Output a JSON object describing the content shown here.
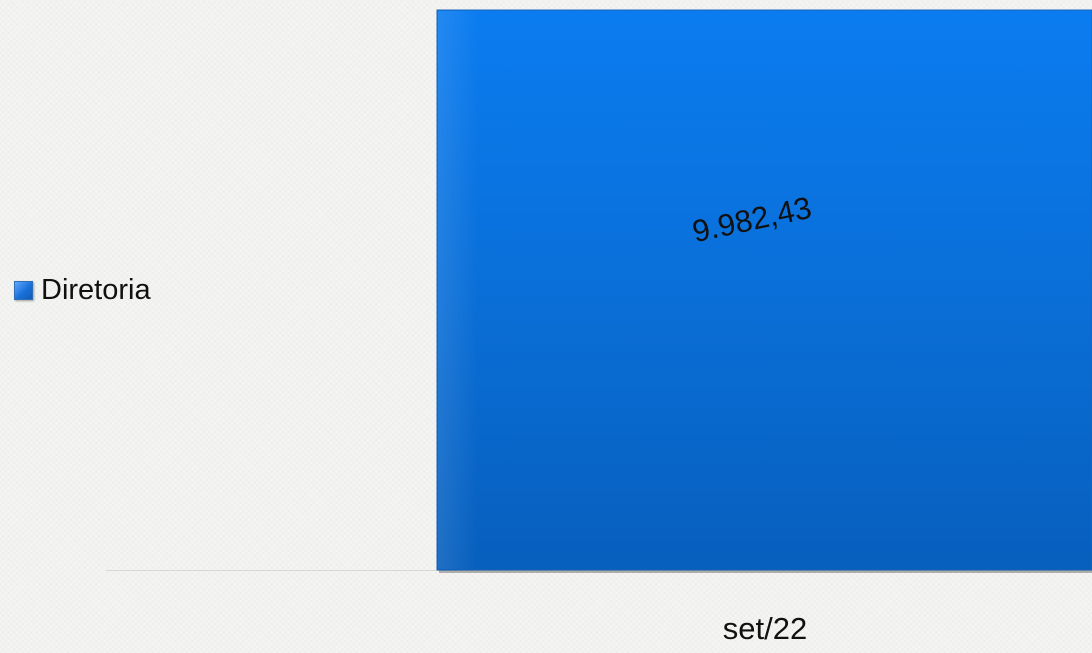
{
  "chart_data": {
    "type": "bar",
    "categories": [
      "set/22"
    ],
    "series": [
      {
        "name": "Diretoria",
        "values": [
          9982.43
        ],
        "value_labels": [
          "9.982,43"
        ],
        "color": "#0b6fd8"
      }
    ],
    "legend_position": "left",
    "grid": false
  }
}
